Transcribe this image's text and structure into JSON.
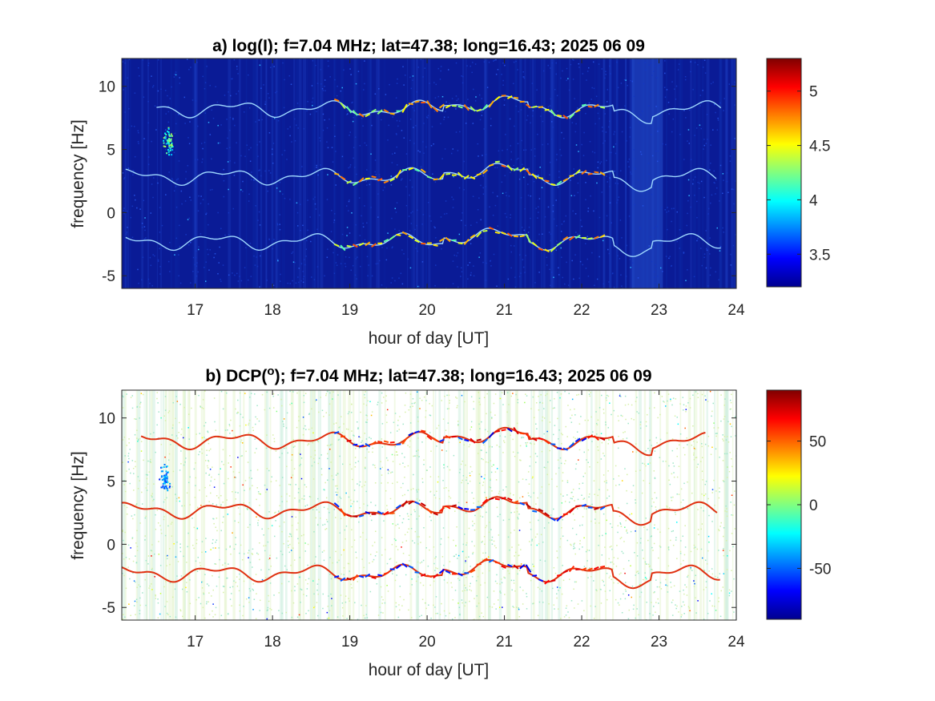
{
  "chart_data": [
    {
      "type": "heatmap",
      "panel": "a",
      "title": "a) log(I); f=7.04 MHz;  lat=47.38; long=16.43; 2025 06 09",
      "xlabel": "hour of day [UT]",
      "ylabel": "frequency [Hz]",
      "xlim": [
        16.05,
        24.0
      ],
      "ylim": [
        -6.0,
        12.2
      ],
      "xticks": [
        17,
        18,
        19,
        20,
        21,
        22,
        23,
        24
      ],
      "xtick_labels": [
        "17",
        "18",
        "19",
        "20",
        "21",
        "22",
        "23",
        "24"
      ],
      "yticks": [
        -5,
        0,
        5,
        10
      ],
      "ytick_labels": [
        "-5",
        "0",
        "5",
        "10"
      ],
      "colorbar": {
        "colormap": "jet",
        "range": [
          3.2,
          5.3
        ],
        "ticks": [
          3.5,
          4,
          4.5,
          5
        ],
        "tick_labels": [
          "3.5",
          "4",
          "4.5",
          "5"
        ]
      },
      "background_color": "#0a1b96",
      "traces": [
        {
          "name": "upper",
          "start_hour": 16.5,
          "end_hour": 23.8,
          "base_hz": 8.2
        },
        {
          "name": "middle",
          "start_hour": 16.1,
          "end_hour": 23.75,
          "base_hz": 2.85
        },
        {
          "name": "lower",
          "start_hour": 16.1,
          "end_hour": 23.8,
          "base_hz": -2.3
        }
      ],
      "blob": {
        "hour": 16.65,
        "hz": 5.6
      }
    },
    {
      "type": "heatmap",
      "panel": "b",
      "title_prefix": "b) DCP(",
      "title_superscript": "o",
      "title_suffix": "); f=7.04 MHz;  lat=47.38; long=16.43; 2025 06 09",
      "xlabel": "hour of day [UT]",
      "ylabel": "frequency [Hz]",
      "xlim": [
        16.05,
        24.0
      ],
      "ylim": [
        -6.0,
        12.2
      ],
      "xticks": [
        17,
        18,
        19,
        20,
        21,
        22,
        23,
        24
      ],
      "xtick_labels": [
        "17",
        "18",
        "19",
        "20",
        "21",
        "22",
        "23",
        "24"
      ],
      "yticks": [
        -5,
        0,
        5,
        10
      ],
      "ytick_labels": [
        "-5",
        "0",
        "5",
        "10"
      ],
      "colorbar": {
        "colormap": "jet",
        "range": [
          -90,
          90
        ],
        "ticks": [
          -50,
          0,
          50
        ],
        "tick_labels": [
          "-50",
          "0",
          "50"
        ]
      },
      "background_color": "#ffffff",
      "traces": [
        {
          "name": "upper",
          "start_hour": 16.3,
          "end_hour": 23.6,
          "base_hz": 8.2
        },
        {
          "name": "middle",
          "start_hour": 16.05,
          "end_hour": 23.75,
          "base_hz": 2.7
        },
        {
          "name": "lower",
          "start_hour": 16.05,
          "end_hour": 23.8,
          "base_hz": -2.3
        }
      ],
      "blob": {
        "hour": 16.6,
        "hz": 5.3
      }
    }
  ]
}
